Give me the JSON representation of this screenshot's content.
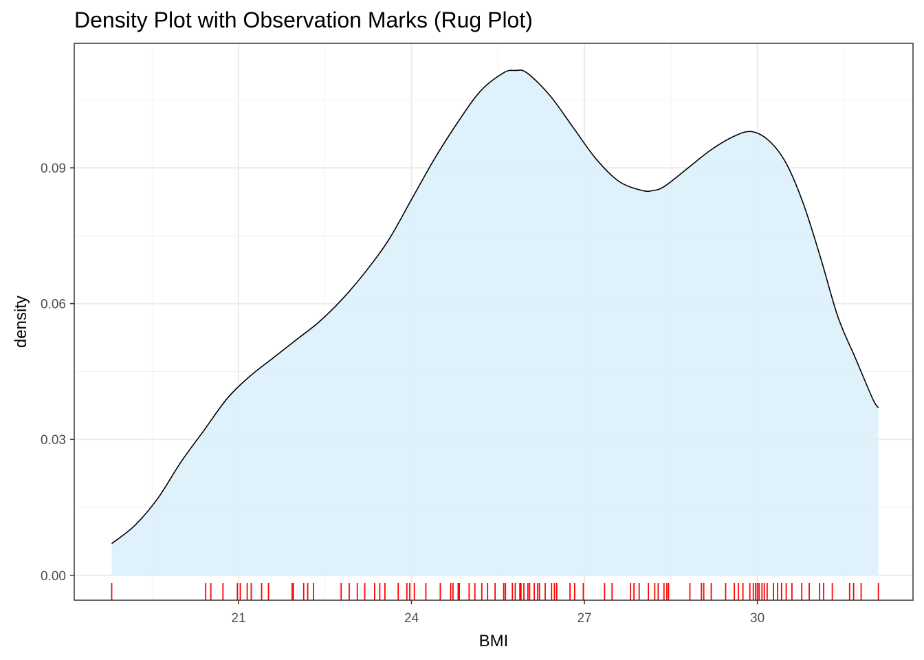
{
  "chart_data": {
    "type": "area",
    "title": "Density Plot with Observation Marks (Rug Plot)",
    "xlabel": "BMI",
    "ylabel": "density",
    "xlim": [
      18.15,
      32.7
    ],
    "ylim": [
      -0.0055,
      0.1175
    ],
    "x_ticks": [
      21,
      24,
      27,
      30
    ],
    "x_tick_labels": [
      "21",
      "24",
      "27",
      "30"
    ],
    "y_ticks": [
      0.0,
      0.03,
      0.06,
      0.09
    ],
    "y_tick_labels": [
      "0.00",
      "0.03",
      "0.06",
      "0.09"
    ],
    "grid": true,
    "legend": "none",
    "fill_color": "#dbeff9",
    "line_color": "#000000",
    "rug_color": "#ff0000",
    "density_curve": {
      "x": [
        18.8,
        19.2,
        19.6,
        20.0,
        20.4,
        20.8,
        21.2,
        21.6,
        22.0,
        22.4,
        22.8,
        23.2,
        23.6,
        24.0,
        24.4,
        24.8,
        25.2,
        25.6,
        25.8,
        26.0,
        26.4,
        26.8,
        27.2,
        27.6,
        28.0,
        28.2,
        28.4,
        28.8,
        29.2,
        29.6,
        29.9,
        30.2,
        30.5,
        30.8,
        31.1,
        31.4,
        31.7,
        32.0,
        32.1
      ],
      "y": [
        0.007,
        0.011,
        0.017,
        0.025,
        0.032,
        0.039,
        0.044,
        0.048,
        0.052,
        0.056,
        0.061,
        0.067,
        0.074,
        0.083,
        0.092,
        0.1,
        0.107,
        0.111,
        0.1115,
        0.111,
        0.106,
        0.099,
        0.092,
        0.087,
        0.085,
        0.085,
        0.086,
        0.09,
        0.094,
        0.097,
        0.098,
        0.096,
        0.091,
        0.082,
        0.07,
        0.057,
        0.048,
        0.039,
        0.037
      ]
    },
    "rug_x": [
      18.8,
      20.43,
      20.52,
      20.73,
      20.98,
      21.03,
      21.15,
      21.22,
      21.4,
      21.52,
      21.93,
      21.95,
      22.13,
      22.2,
      22.3,
      22.78,
      22.92,
      23.06,
      23.19,
      23.36,
      23.45,
      23.54,
      23.77,
      23.92,
      23.97,
      24.05,
      24.25,
      24.5,
      24.68,
      24.72,
      24.81,
      24.83,
      25.0,
      25.1,
      25.22,
      25.32,
      25.45,
      25.6,
      25.63,
      25.75,
      25.8,
      25.88,
      25.9,
      25.95,
      26.02,
      26.05,
      26.13,
      26.19,
      26.22,
      26.32,
      26.43,
      26.48,
      26.52,
      26.75,
      26.83,
      26.98,
      27.35,
      27.48,
      27.8,
      27.86,
      27.95,
      28.11,
      28.22,
      28.28,
      28.38,
      28.43,
      28.46,
      28.83,
      29.03,
      29.07,
      29.2,
      29.45,
      29.6,
      29.67,
      29.75,
      29.87,
      29.93,
      29.97,
      30.0,
      30.03,
      30.08,
      30.12,
      30.17,
      30.28,
      30.35,
      30.42,
      30.5,
      30.6,
      30.77,
      30.9,
      31.08,
      31.15,
      31.3,
      31.6,
      31.67,
      31.8,
      32.1
    ]
  }
}
